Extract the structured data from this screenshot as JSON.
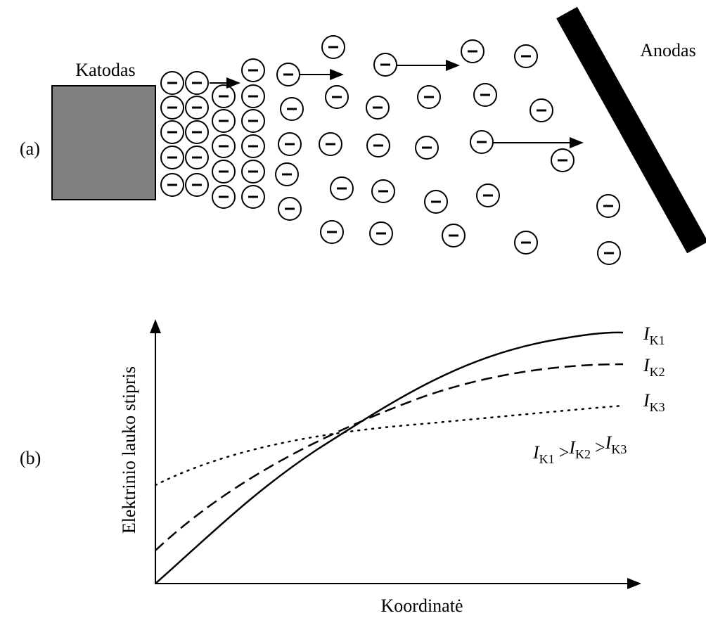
{
  "panel_a": {
    "label": "(a)",
    "cathode": "Katodas",
    "anode": "Anodas"
  },
  "panel_b": {
    "label": "(b)",
    "y_axis": "Elektrinio lauko stipris",
    "x_axis": "Koordinatė",
    "curves": [
      {
        "symbol": "I",
        "subscript": "K1"
      },
      {
        "symbol": "I",
        "subscript": "K2"
      },
      {
        "symbol": "I",
        "subscript": "K3"
      }
    ],
    "relation": {
      "terms": [
        {
          "symbol": "I",
          "subscript": "K1"
        },
        {
          "symbol": "I",
          "subscript": "K2"
        },
        {
          "symbol": "I",
          "subscript": "K3"
        }
      ],
      "operator": ">"
    }
  }
}
